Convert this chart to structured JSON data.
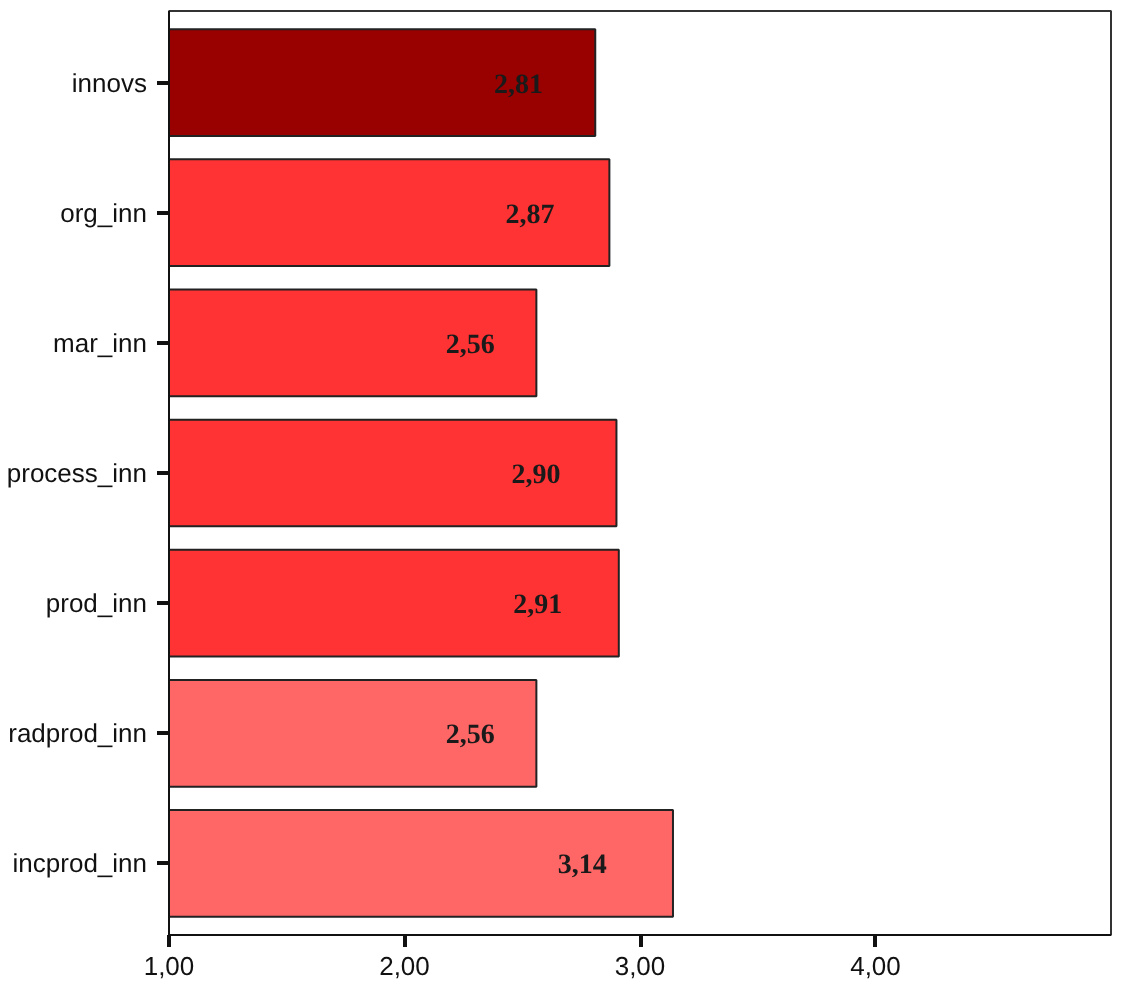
{
  "chart_data": {
    "type": "bar",
    "orientation": "horizontal",
    "categories": [
      "innovs",
      "org_inn",
      "mar_inn",
      "process_inn",
      "prod_inn",
      "radprod_inn",
      "incprod_inn"
    ],
    "values": [
      2.81,
      2.87,
      2.56,
      2.9,
      2.91,
      2.56,
      3.14
    ],
    "value_labels": [
      "2,81",
      "2,87",
      "2,56",
      "2,90",
      "2,91",
      "2,56",
      "3,14"
    ],
    "colors": [
      "#990000",
      "#ff3333",
      "#ff3333",
      "#ff3333",
      "#ff3333",
      "#ff6666",
      "#ff6666"
    ],
    "xlim": [
      1,
      5
    ],
    "xticks": [
      {
        "value": 1,
        "label": "1,00"
      },
      {
        "value": 2,
        "label": "2,00"
      },
      {
        "value": 3,
        "label": "3,00"
      },
      {
        "value": 4,
        "label": "4,00"
      }
    ],
    "grid": false
  }
}
